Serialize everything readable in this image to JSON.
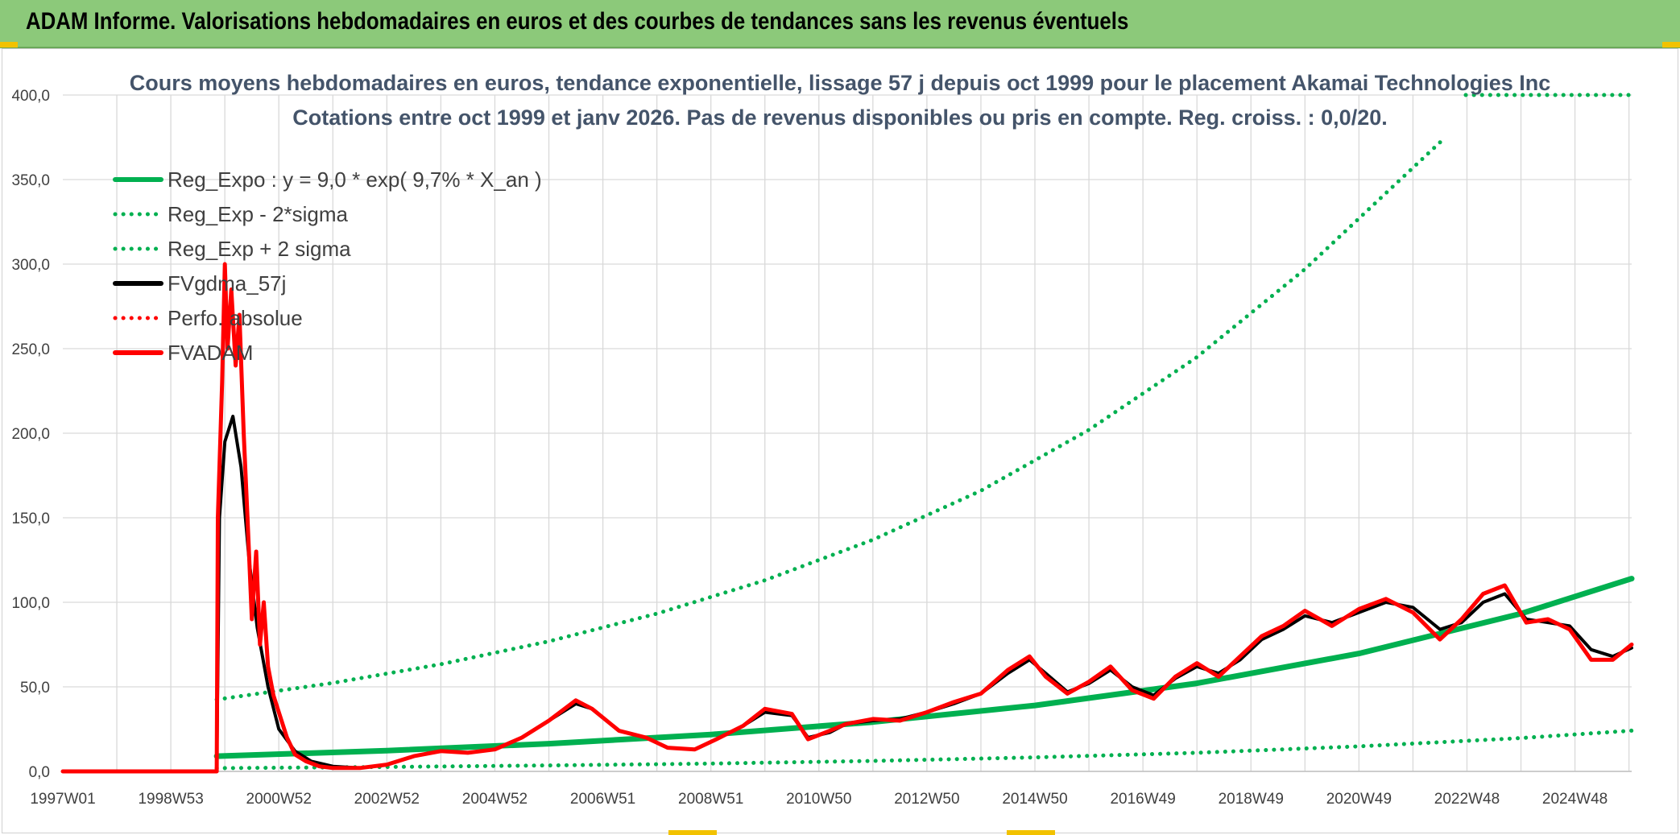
{
  "header": {
    "title": "ADAM Informe. Valorisations hebdomadaires en euros et des courbes de tendances sans les revenus éventuels"
  },
  "colors": {
    "banner": "#8cc97a",
    "trend": "#00b050",
    "price": "#ff0000",
    "smoothed": "#000000",
    "grid": "#d9d9d9",
    "accent": "#f2c200"
  },
  "chart_data": {
    "type": "line",
    "title": "Cours moyens hebdomadaires en euros, tendance exponentielle, lissage 57 j depuis oct 1999 pour le placement Akamai Technologies Inc",
    "subtitle": "Cotations entre oct 1999 et janv 2026. Pas de revenus disponibles ou pris en compte. Reg. croiss. : 0,0/20.",
    "xlabel": "",
    "ylabel": "",
    "ylim": [
      0,
      400
    ],
    "xlim": [
      1997.0,
      2026.05
    ],
    "y_ticks": [
      0,
      50,
      100,
      150,
      200,
      250,
      300,
      350,
      400
    ],
    "y_tick_labels": [
      "0,0",
      "50,0",
      "100,0",
      "150,0",
      "200,0",
      "250,0",
      "300,0",
      "350,0",
      "400,0"
    ],
    "x_tick_values": [
      1997.0,
      1999.0,
      2001.0,
      2003.0,
      2005.0,
      2007.0,
      2009.0,
      2011.0,
      2013.0,
      2015.0,
      2017.0,
      2019.0,
      2021.0,
      2023.0,
      2025.0
    ],
    "x_tick_labels": [
      "1997W01",
      "1998W53",
      "2000W52",
      "2002W52",
      "2004W52",
      "2006W51",
      "2008W51",
      "2010W50",
      "2012W50",
      "2014W50",
      "2016W49",
      "2018W49",
      "2020W49",
      "2022W48",
      "2024W48"
    ],
    "legend": {
      "position": "top-left"
    },
    "series": [
      {
        "name": "Reg_Expo : y = 9,0 * exp( 9,7% *  X_an )",
        "style": "solid",
        "color": "#00b050",
        "x": [
          1999.85,
          2003,
          2006,
          2009,
          2012,
          2015,
          2018,
          2021,
          2024,
          2026.05
        ],
        "y": [
          9.0,
          12.3,
          16.4,
          21.8,
          29.2,
          39.0,
          52.1,
          69.7,
          93.3,
          114.0
        ]
      },
      {
        "name": "Reg_Exp - 2*sigma",
        "style": "dotted",
        "color": "#00b050",
        "x": [
          1999.85,
          2003,
          2006,
          2009,
          2012,
          2015,
          2018,
          2021,
          2024,
          2026.05
        ],
        "y": [
          1.9,
          2.6,
          3.5,
          4.6,
          6.2,
          8.3,
          11.0,
          14.8,
          19.7,
          24.1
        ]
      },
      {
        "name": "Reg_Exp + 2 sigma",
        "style": "dotted",
        "color": "#00b050",
        "x": [
          1999.85,
          2002,
          2004,
          2006,
          2008,
          2010,
          2012,
          2014,
          2016,
          2018,
          2020,
          2021.5,
          2022.6
        ],
        "y": [
          42.5,
          52.3,
          63.4,
          76.9,
          93.3,
          113.0,
          137.0,
          166.0,
          202.0,
          245.0,
          297.0,
          342.0,
          375.0
        ]
      },
      {
        "name": "FVgdma_57j",
        "style": "solid",
        "color": "#000000",
        "x": [
          1997.0,
          1999.85,
          1999.9,
          2000.0,
          2000.15,
          2000.3,
          2000.45,
          2000.6,
          2000.8,
          2001.0,
          2001.3,
          2001.6,
          2002.0,
          2002.5,
          2003.0,
          2003.5,
          2004.0,
          2004.5,
          2005.0,
          2005.5,
          2006.0,
          2006.5,
          2006.8,
          2007.3,
          2007.8,
          2008.2,
          2008.7,
          2009.1,
          2009.6,
          2010.0,
          2010.5,
          2010.8,
          2011.2,
          2011.5,
          2012.0,
          2012.5,
          2013.0,
          2013.5,
          2014.0,
          2014.5,
          2014.9,
          2015.2,
          2015.6,
          2016.0,
          2016.4,
          2016.8,
          2017.2,
          2017.6,
          2018.0,
          2018.4,
          2018.8,
          2019.2,
          2019.6,
          2020.0,
          2020.5,
          2021.0,
          2021.5,
          2022.0,
          2022.5,
          2022.9,
          2023.3,
          2023.7,
          2024.1,
          2024.5,
          2024.9,
          2025.3,
          2025.7,
          2026.05
        ],
        "y": [
          0,
          0,
          150,
          195,
          210,
          180,
          125,
          85,
          50,
          25,
          12,
          6,
          3,
          2,
          4,
          9,
          12,
          11,
          13,
          20,
          30,
          40,
          37,
          24,
          20,
          14,
          13,
          19,
          27,
          35,
          33,
          20,
          23,
          28,
          30,
          31,
          35,
          40,
          46,
          58,
          66,
          58,
          47,
          52,
          60,
          50,
          45,
          55,
          62,
          58,
          66,
          78,
          84,
          92,
          88,
          94,
          100,
          97,
          84,
          88,
          100,
          105,
          90,
          88,
          86,
          72,
          68,
          73
        ]
      },
      {
        "name": "Perfo. absolue",
        "style": "dotted",
        "color": "#ff0000",
        "x": [],
        "y": []
      },
      {
        "name": "FVADAM",
        "style": "solid",
        "color": "#ff0000",
        "x": [
          1997.0,
          1999.85,
          1999.87,
          1999.95,
          2000.0,
          2000.05,
          2000.12,
          2000.2,
          2000.27,
          2000.35,
          2000.42,
          2000.5,
          2000.58,
          2000.65,
          2000.72,
          2000.8,
          2000.9,
          2001.0,
          2001.15,
          2001.3,
          2001.5,
          2001.75,
          2002.0,
          2002.5,
          2003.0,
          2003.5,
          2004.0,
          2004.5,
          2005.0,
          2005.5,
          2006.0,
          2006.5,
          2006.8,
          2007.3,
          2007.8,
          2008.2,
          2008.7,
          2009.1,
          2009.6,
          2010.0,
          2010.5,
          2010.8,
          2011.2,
          2011.5,
          2012.0,
          2012.5,
          2013.0,
          2013.5,
          2014.0,
          2014.5,
          2014.9,
          2015.2,
          2015.6,
          2016.0,
          2016.4,
          2016.8,
          2017.2,
          2017.6,
          2018.0,
          2018.4,
          2018.8,
          2019.2,
          2019.6,
          2020.0,
          2020.5,
          2021.0,
          2021.5,
          2022.0,
          2022.5,
          2022.9,
          2023.3,
          2023.7,
          2024.1,
          2024.5,
          2024.9,
          2025.3,
          2025.7,
          2026.05
        ],
        "y": [
          0,
          0,
          150,
          230,
          300,
          250,
          285,
          240,
          270,
          200,
          150,
          90,
          130,
          75,
          100,
          62,
          45,
          35,
          20,
          10,
          6,
          3,
          2,
          2,
          4,
          9,
          12,
          11,
          13,
          20,
          30,
          42,
          37,
          24,
          20,
          14,
          13,
          19,
          27,
          37,
          34,
          19,
          24,
          28,
          31,
          30,
          35,
          41,
          46,
          60,
          68,
          56,
          46,
          53,
          62,
          48,
          43,
          56,
          64,
          56,
          68,
          80,
          86,
          95,
          86,
          96,
          102,
          94,
          78,
          90,
          105,
          110,
          88,
          90,
          84,
          66,
          66,
          75
        ]
      }
    ]
  }
}
